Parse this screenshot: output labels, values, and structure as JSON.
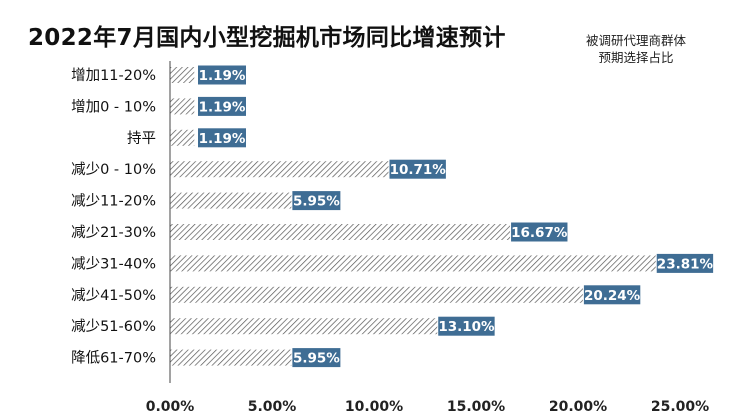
{
  "chart_data": {
    "type": "bar",
    "orientation": "horizontal",
    "title": "2022年7月国内小型挖掘机市场同比增速预计",
    "note": [
      "被调研代理商群体",
      "预期选择占比"
    ],
    "categories": [
      "增加11-20%",
      "增加0 - 10%",
      "持平",
      "减少0 - 10%",
      "减少11-20%",
      "减少21-30%",
      "减少31-40%",
      "减少41-50%",
      "减少51-60%",
      "降低61-70%"
    ],
    "values": [
      1.19,
      1.19,
      1.19,
      10.71,
      5.95,
      16.67,
      23.81,
      20.24,
      13.1,
      5.95
    ],
    "data_labels": [
      "1.19%",
      "1.19%",
      "1.19%",
      "10.71%",
      "5.95%",
      "16.67%",
      "23.81%",
      "20.24%",
      "13.10%",
      "5.95%"
    ],
    "x_ticks": [
      "0.00%",
      "5.00%",
      "10.00%",
      "15.00%",
      "20.00%",
      "25.00%"
    ],
    "xlim": [
      0,
      25
    ],
    "xlabel": "",
    "ylabel": "",
    "grid": false,
    "bar_style": "diagonal hatch",
    "colors": {
      "hatch": "#555555",
      "label_bg": "#3f6d94",
      "label_text": "#ffffff",
      "axis": "#444444"
    }
  }
}
